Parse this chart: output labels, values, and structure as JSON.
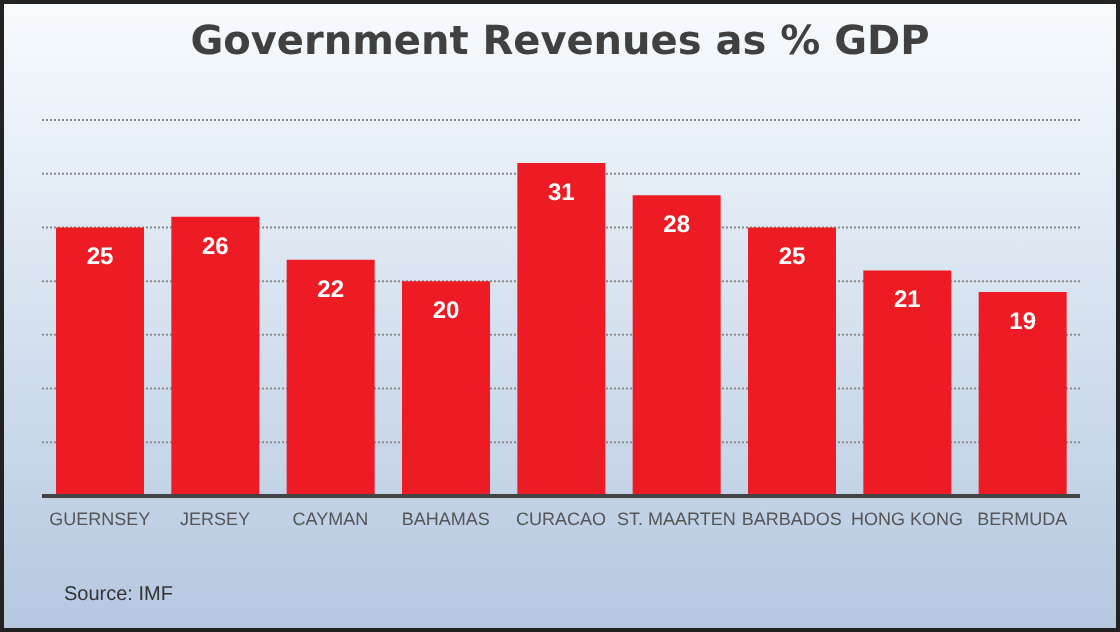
{
  "chart_data": {
    "type": "bar",
    "title": "Government Revenues as %  GDP",
    "categories": [
      "GUERNSEY",
      "JERSEY",
      "CAYMAN",
      "BAHAMAS",
      "CURACAO",
      "ST. MAARTEN",
      "BARBADOS",
      "HONG KONG",
      "BERMUDA"
    ],
    "values": [
      25,
      26,
      22,
      20,
      31,
      28,
      25,
      21,
      19
    ],
    "color": "#ed1c24",
    "ylim": [
      0,
      35
    ],
    "grid": "y",
    "data_labels": true,
    "tick_labels": "x",
    "annotations": [
      "Source: IMF"
    ]
  }
}
